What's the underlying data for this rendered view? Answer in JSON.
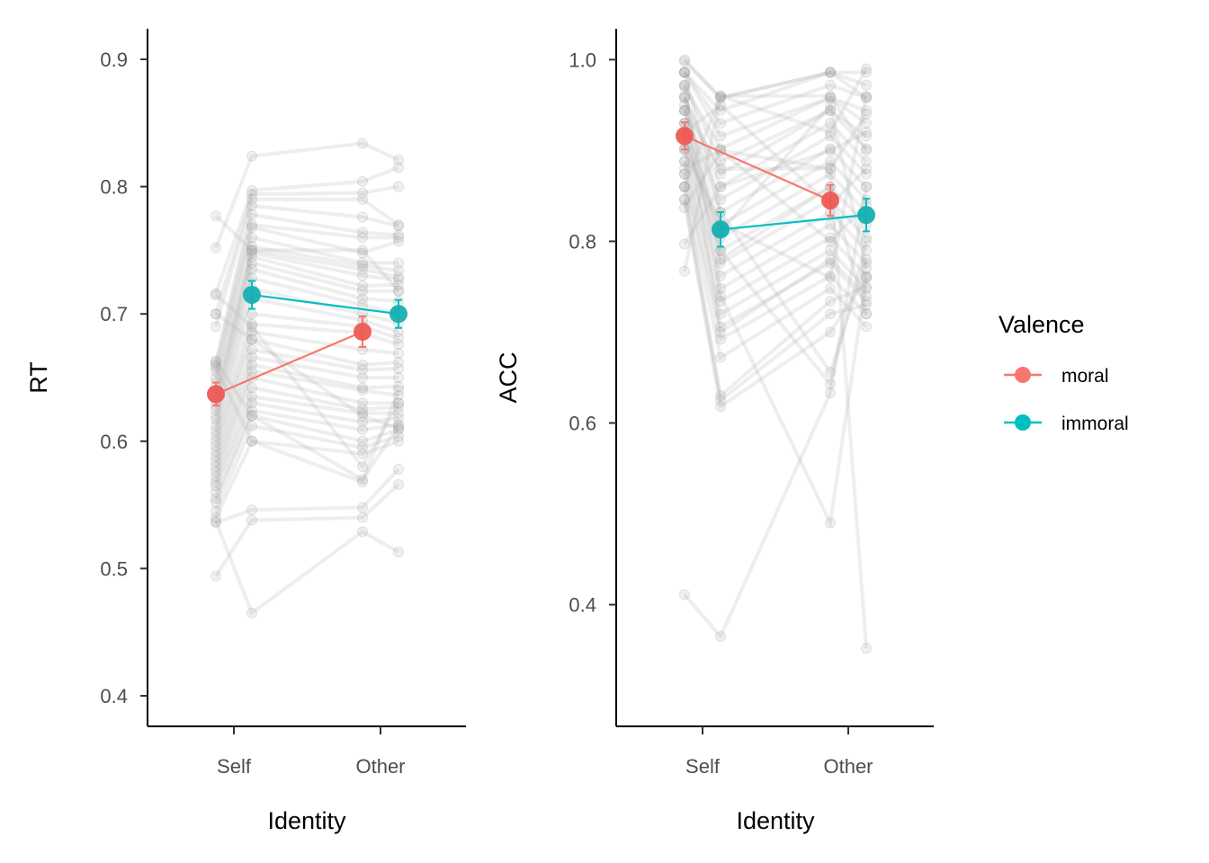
{
  "chart_data": [
    {
      "type": "line",
      "panel": "left",
      "title": "",
      "xlabel": "Identity",
      "ylabel": "RT",
      "categories": [
        "Self",
        "Other"
      ],
      "y_ticks": [
        "0.4",
        "0.5",
        "0.6",
        "0.7",
        "0.8",
        "0.9"
      ],
      "y_tick_values": [
        0.4,
        0.5,
        0.6,
        0.7,
        0.8,
        0.9
      ],
      "ylim": [
        0.376,
        0.924
      ],
      "grid": false,
      "series": [
        {
          "name": "moral",
          "color": "#F8766D",
          "values": [
            0.637,
            0.686
          ],
          "se": [
            0.009,
            0.012
          ]
        },
        {
          "name": "immoral",
          "color": "#00BFC4",
          "values": [
            0.715,
            0.7
          ],
          "se": [
            0.011,
            0.011
          ]
        }
      ],
      "participants": [
        [
          0.777,
          0.75,
          0.75,
          0.718
        ],
        [
          0.752,
          0.824,
          0.834,
          0.821
        ],
        [
          0.716,
          0.797,
          0.804,
          0.815
        ],
        [
          0.7,
          0.794,
          0.795,
          0.8
        ],
        [
          0.69,
          0.79,
          0.79,
          0.77
        ],
        [
          0.662,
          0.785,
          0.776,
          0.769
        ],
        [
          0.66,
          0.778,
          0.764,
          0.762
        ],
        [
          0.655,
          0.77,
          0.76,
          0.76
        ],
        [
          0.65,
          0.768,
          0.748,
          0.757
        ],
        [
          0.646,
          0.76,
          0.74,
          0.74
        ],
        [
          0.64,
          0.753,
          0.738,
          0.734
        ],
        [
          0.635,
          0.75,
          0.735,
          0.729
        ],
        [
          0.632,
          0.748,
          0.73,
          0.727
        ],
        [
          0.628,
          0.745,
          0.722,
          0.723
        ],
        [
          0.625,
          0.74,
          0.718,
          0.718
        ],
        [
          0.62,
          0.735,
          0.712,
          0.71
        ],
        [
          0.617,
          0.728,
          0.707,
          0.7
        ],
        [
          0.612,
          0.72,
          0.7,
          0.693
        ],
        [
          0.608,
          0.712,
          0.695,
          0.686
        ],
        [
          0.604,
          0.7,
          0.69,
          0.681
        ],
        [
          0.6,
          0.692,
          0.685,
          0.676
        ],
        [
          0.596,
          0.686,
          0.672,
          0.669
        ],
        [
          0.592,
          0.68,
          0.66,
          0.662
        ],
        [
          0.588,
          0.672,
          0.656,
          0.657
        ],
        [
          0.584,
          0.666,
          0.65,
          0.65
        ],
        [
          0.58,
          0.66,
          0.642,
          0.643
        ],
        [
          0.576,
          0.655,
          0.64,
          0.636
        ],
        [
          0.572,
          0.65,
          0.63,
          0.63
        ],
        [
          0.568,
          0.642,
          0.625,
          0.627
        ],
        [
          0.565,
          0.635,
          0.622,
          0.622
        ],
        [
          0.56,
          0.63,
          0.615,
          0.618
        ],
        [
          0.555,
          0.624,
          0.609,
          0.613
        ],
        [
          0.552,
          0.62,
          0.6,
          0.609
        ],
        [
          0.545,
          0.612,
          0.595,
          0.604
        ],
        [
          0.54,
          0.6,
          0.59,
          0.6
        ],
        [
          0.536,
          0.546,
          0.548,
          0.578
        ],
        [
          0.494,
          0.538,
          0.54,
          0.566
        ],
        [
          0.537,
          0.465,
          0.529,
          0.513
        ],
        [
          0.663,
          0.62,
          0.57,
          0.612
        ],
        [
          0.658,
          0.6,
          0.568,
          0.64
        ],
        [
          0.7,
          0.68,
          0.62,
          0.61
        ],
        [
          0.715,
          0.69,
          0.58,
          0.63
        ]
      ]
    },
    {
      "type": "line",
      "panel": "right",
      "title": "",
      "xlabel": "Identity",
      "ylabel": "ACC",
      "categories": [
        "Self",
        "Other"
      ],
      "y_ticks": [
        "0.4",
        "0.6",
        "0.8",
        "1.0"
      ],
      "y_tick_values": [
        0.4,
        0.6,
        0.8,
        1.0
      ],
      "ylim": [
        0.266,
        1.034
      ],
      "grid": false,
      "series": [
        {
          "name": "moral",
          "color": "#F8766D",
          "values": [
            0.916,
            0.845
          ],
          "se": [
            0.015,
            0.017
          ]
        },
        {
          "name": "immoral",
          "color": "#00BFC4",
          "values": [
            0.813,
            0.829
          ],
          "se": [
            0.019,
            0.018
          ]
        }
      ],
      "participants": [
        [
          1.0,
          0.958,
          0.986,
          0.986
        ],
        [
          0.998,
          0.958,
          0.986,
          0.972
        ],
        [
          0.986,
          0.944,
          0.986,
          0.958
        ],
        [
          0.986,
          0.93,
          0.972,
          0.958
        ],
        [
          0.986,
          0.916,
          0.958,
          0.944
        ],
        [
          0.972,
          0.902,
          0.958,
          0.93
        ],
        [
          0.972,
          0.888,
          0.944,
          0.916
        ],
        [
          0.958,
          0.874,
          0.944,
          0.902
        ],
        [
          0.958,
          0.86,
          0.93,
          0.888
        ],
        [
          0.944,
          0.846,
          0.916,
          0.874
        ],
        [
          0.944,
          0.832,
          0.902,
          0.86
        ],
        [
          0.93,
          0.818,
          0.888,
          0.846
        ],
        [
          0.93,
          0.804,
          0.874,
          0.832
        ],
        [
          0.916,
          0.79,
          0.86,
          0.818
        ],
        [
          0.916,
          0.776,
          0.846,
          0.804
        ],
        [
          0.902,
          0.762,
          0.832,
          0.79
        ],
        [
          0.902,
          0.748,
          0.818,
          0.776
        ],
        [
          0.888,
          0.734,
          0.804,
          0.762
        ],
        [
          0.888,
          0.72,
          0.79,
          0.748
        ],
        [
          0.874,
          0.706,
          0.776,
          0.734
        ],
        [
          0.874,
          0.692,
          0.762,
          0.72
        ],
        [
          0.86,
          0.672,
          0.748,
          0.706
        ],
        [
          0.86,
          0.63,
          0.734,
          0.75
        ],
        [
          0.846,
          0.625,
          0.72,
          0.73
        ],
        [
          0.846,
          0.618,
          0.7,
          0.76
        ],
        [
          0.837,
          0.9,
          0.88,
          0.94
        ],
        [
          0.797,
          0.86,
          0.9,
          0.92
        ],
        [
          0.767,
          0.96,
          0.96,
          0.9
        ],
        [
          0.986,
          0.832,
          0.656,
          0.78
        ],
        [
          0.96,
          0.79,
          0.643,
          0.8
        ],
        [
          0.97,
          0.74,
          0.49,
          0.76
        ],
        [
          0.944,
          0.88,
          0.88,
          0.352
        ],
        [
          0.411,
          0.365,
          0.633,
          0.86
        ],
        [
          0.92,
          0.95,
          0.84,
          0.88
        ],
        [
          0.88,
          0.9,
          0.8,
          0.84
        ],
        [
          0.86,
          0.96,
          0.92,
          0.99
        ],
        [
          0.9,
          0.82,
          0.76,
          0.96
        ],
        [
          0.93,
          0.78,
          0.86,
          0.72
        ],
        [
          0.95,
          0.7,
          0.78,
          0.74
        ],
        [
          0.91,
          0.81,
          0.95,
          0.77
        ]
      ]
    }
  ],
  "legend": {
    "title": "Valence",
    "items": [
      {
        "label": "moral",
        "color": "#F8766D"
      },
      {
        "label": "immoral",
        "color": "#00BFC4"
      }
    ],
    "position": "right"
  }
}
